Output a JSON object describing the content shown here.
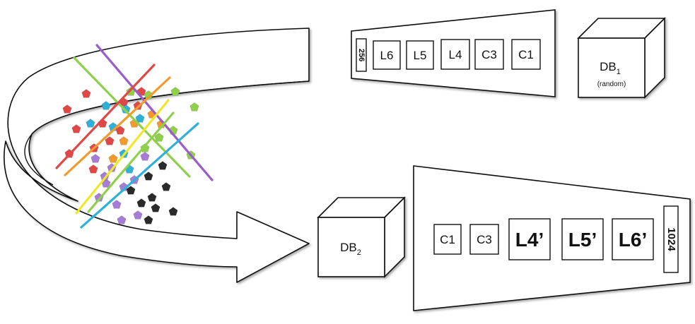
{
  "top_network": {
    "layers": [
      "C1",
      "C3",
      "L4",
      "L5",
      "L6"
    ],
    "output": "256"
  },
  "db1": {
    "label": "DB",
    "subscript": "1",
    "note": "(random)"
  },
  "db2": {
    "label": "DB",
    "subscript": "2"
  },
  "bottom_network": {
    "layers": [
      "C1",
      "C3",
      "L4’",
      "L5’",
      "L6’"
    ],
    "output": "1024"
  },
  "colors": {
    "red": "#e04848",
    "green": "#8ed04a",
    "purple": "#9a5cc8",
    "orange": "#f39a2c",
    "yellow": "#f0e62a",
    "cyan": "#2fb0d8",
    "black": "#2a2a2a",
    "violet": "#a77cd6"
  }
}
